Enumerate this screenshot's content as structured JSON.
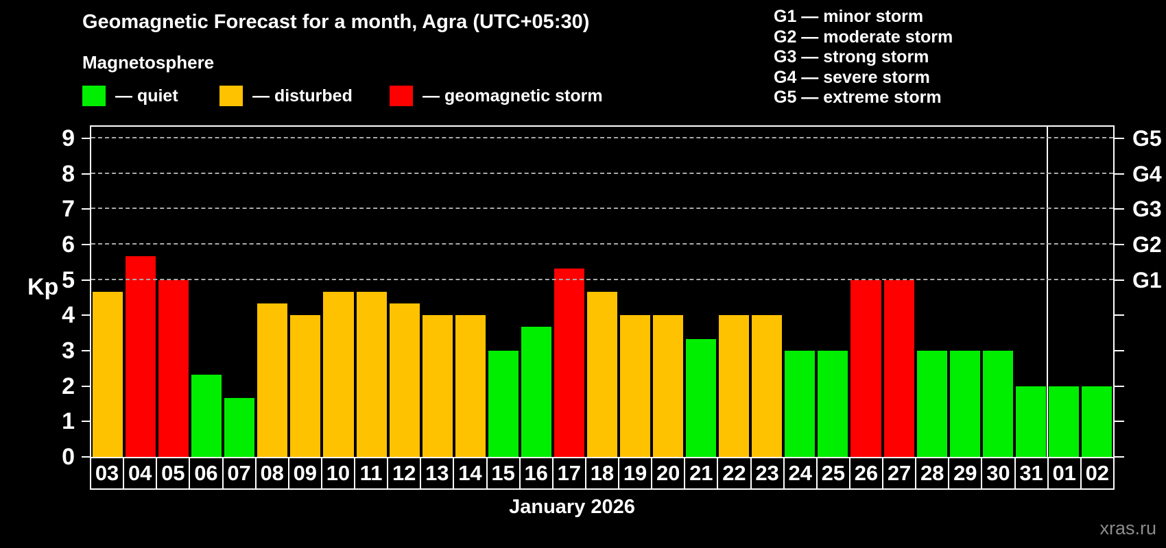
{
  "title": "Geomagnetic Forecast for a month, Agra (UTC+05:30)",
  "subtitle": "Magnetosphere",
  "legend": [
    {
      "label": "— quiet",
      "status": "quiet"
    },
    {
      "label": "— disturbed",
      "status": "disturbed"
    },
    {
      "label": "— geomagnetic storm",
      "status": "storm"
    }
  ],
  "storm_scale": [
    "G1 — minor storm",
    "G2 — moderate storm",
    "G3 — strong storm",
    "G4 — severe storm",
    "G5 — extreme storm"
  ],
  "status_colors": {
    "quiet": "#00ee00",
    "disturbed": "#ffc200",
    "storm": "#ff0000"
  },
  "axis_color": "#ffffff",
  "gridline_color": "#ababab",
  "chart_data": {
    "type": "bar",
    "title": "Geomagnetic Forecast for a month, Agra (UTC+05:30)",
    "xlabel": "January 2026",
    "ylabel": "Kp",
    "ylim": [
      0,
      9.33
    ],
    "yticks": [
      0,
      1,
      2,
      3,
      4,
      5,
      6,
      7,
      8,
      9
    ],
    "gridlines_at": [
      5,
      6,
      7,
      8,
      9
    ],
    "right_axis_labels": [
      {
        "kp": 5,
        "label": "G1"
      },
      {
        "kp": 6,
        "label": "G2"
      },
      {
        "kp": 7,
        "label": "G3"
      },
      {
        "kp": 8,
        "label": "G4"
      },
      {
        "kp": 9,
        "label": "G5"
      }
    ],
    "legend_position": "top",
    "grid": "dashed horizontal at storm levels only",
    "categories": [
      "03",
      "04",
      "05",
      "06",
      "07",
      "08",
      "09",
      "10",
      "11",
      "12",
      "13",
      "14",
      "15",
      "16",
      "17",
      "18",
      "19",
      "20",
      "21",
      "22",
      "23",
      "24",
      "25",
      "26",
      "27",
      "28",
      "29",
      "30",
      "31",
      "01",
      "02"
    ],
    "values": [
      4.67,
      5.67,
      5.0,
      2.33,
      1.67,
      4.33,
      4.0,
      4.67,
      4.67,
      4.33,
      4.0,
      4.0,
      3.0,
      3.67,
      5.33,
      4.67,
      4.0,
      4.0,
      3.33,
      4.0,
      4.0,
      3.0,
      3.0,
      5.0,
      5.0,
      3.0,
      3.0,
      3.0,
      2.0,
      2.0,
      2.0
    ],
    "statuses": [
      "disturbed",
      "storm",
      "storm",
      "quiet",
      "quiet",
      "disturbed",
      "disturbed",
      "disturbed",
      "disturbed",
      "disturbed",
      "disturbed",
      "disturbed",
      "quiet",
      "quiet",
      "storm",
      "disturbed",
      "disturbed",
      "disturbed",
      "quiet",
      "disturbed",
      "disturbed",
      "quiet",
      "quiet",
      "storm",
      "storm",
      "quiet",
      "quiet",
      "quiet",
      "quiet",
      "quiet",
      "quiet"
    ],
    "month_separator_before_category_index": 29
  },
  "watermark": "xras.ru"
}
